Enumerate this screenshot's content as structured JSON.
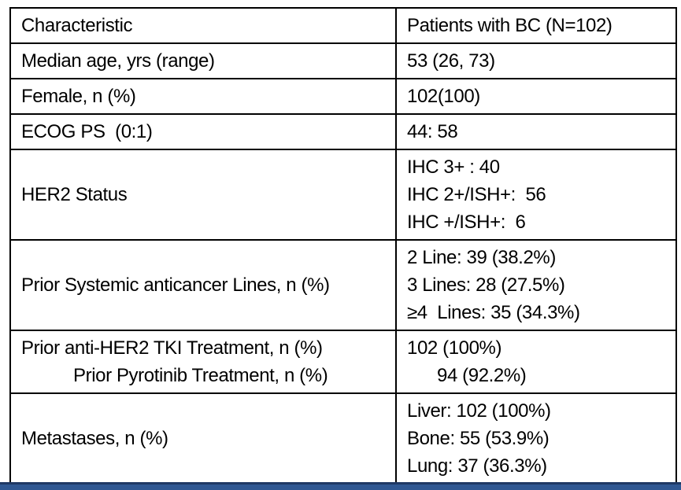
{
  "table": {
    "header": {
      "col1": "Characteristic",
      "col2": "Patients with BC (N=102)"
    },
    "rows": [
      {
        "characteristic": [
          "Median age, yrs (range)"
        ],
        "values": [
          "53 (26, 73)"
        ]
      },
      {
        "characteristic": [
          "Female, n (%)"
        ],
        "values": [
          "102(100)"
        ]
      },
      {
        "characteristic": [
          "ECOG PS  (0:1)"
        ],
        "values": [
          "44: 58"
        ]
      },
      {
        "characteristic": [
          "HER2 Status"
        ],
        "values": [
          "IHC 3+ : 40",
          "IHC 2+/ISH+:  56",
          "IHC +/ISH+:  6"
        ]
      },
      {
        "characteristic": [
          "Prior Systemic anticancer Lines, n (%)"
        ],
        "values": [
          "2 Line: 39 (38.2%)",
          "3 Lines: 28 (27.5%)",
          "≥4  Lines: 35 (34.3%)"
        ]
      },
      {
        "characteristic": [
          "Prior anti-HER2 TKI Treatment, n (%)",
          "Prior Pyrotinib Treatment, n (%)"
        ],
        "values": [
          "102 (100%)",
          "94 (92.2%)"
        ],
        "indent": true
      },
      {
        "characteristic": [
          "Metastases, n (%)"
        ],
        "values": [
          "Liver: 102 (100%)",
          "Bone: 55 (53.9%)",
          "Lung: 37 (36.3%)"
        ]
      }
    ]
  },
  "footer_bar": {
    "color_top": "#1F3864",
    "color_main": "#2F5792"
  }
}
